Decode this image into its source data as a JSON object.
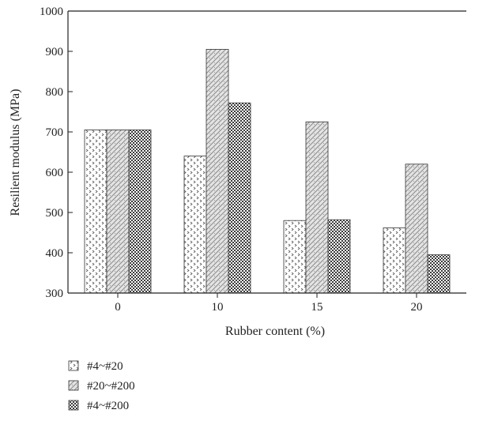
{
  "chart_data": {
    "type": "bar",
    "title": "",
    "xlabel": "Rubber content (%)",
    "ylabel": "Resilient modulus (MPa)",
    "ylim": [
      300,
      1000
    ],
    "yticks": [
      300,
      400,
      500,
      600,
      700,
      800,
      900,
      1000
    ],
    "categories": [
      "0",
      "10",
      "15",
      "20"
    ],
    "series": [
      {
        "name": "#4~#20",
        "values": [
          705,
          640,
          480,
          462
        ]
      },
      {
        "name": "#20~#200",
        "values": [
          705,
          905,
          725,
          620
        ]
      },
      {
        "name": "#4~#200",
        "values": [
          705,
          772,
          482,
          395
        ]
      }
    ],
    "legend_position": "bottom-left",
    "grid": false
  }
}
